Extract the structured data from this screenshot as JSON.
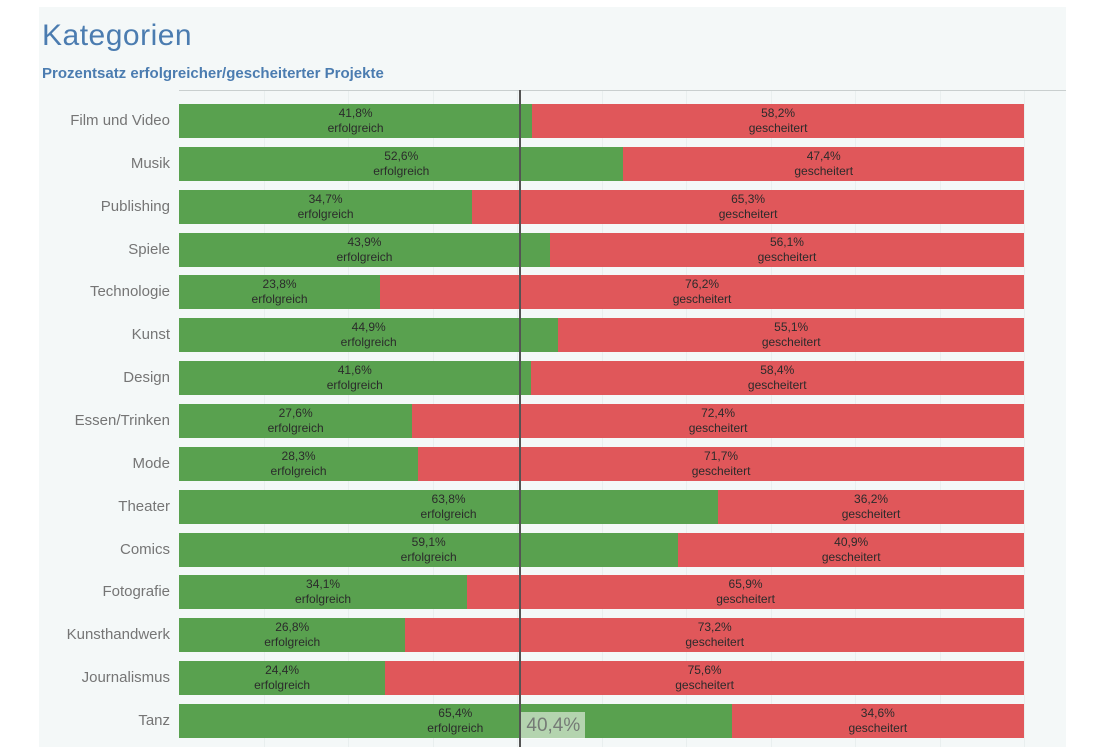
{
  "header": {
    "title": "Kategorien",
    "subtitle": "Prozentsatz erfolgreicher/gescheiterter Projekte"
  },
  "colors": {
    "success_green": "#59a14f",
    "failure_red": "#e0575a",
    "title_blue": "#4b7cb0",
    "canvas_background": "#f4f8f8",
    "category_label_grey": "#757575",
    "bar_label_dark": "#2b2b2b",
    "reference_line_grey": "#545454",
    "gridline_grey": "#e9efef"
  },
  "reference_line": {
    "value": 40.4,
    "label": "40,4%"
  },
  "chart_data": {
    "type": "bar",
    "orientation": "horizontal-stacked",
    "title": "Kategorien",
    "subtitle": "Prozentsatz erfolgreicher/gescheiterter Projekte",
    "xlim": [
      0,
      100
    ],
    "unit": "%",
    "decimal_separator": ",",
    "grid": "faint vertical lines every 10%",
    "legend_position": "none (labels inside bars)",
    "categories": [
      "Film und Video",
      "Musik",
      "Publishing",
      "Spiele",
      "Technologie",
      "Kunst",
      "Design",
      "Essen/Trinken",
      "Mode",
      "Theater",
      "Comics",
      "Fotografie",
      "Kunsthandwerk",
      "Journalismus",
      "Tanz"
    ],
    "series": [
      {
        "name": "erfolgreich",
        "color": "#59a14f",
        "values": [
          41.8,
          52.6,
          34.7,
          43.9,
          23.8,
          44.9,
          41.6,
          27.6,
          28.3,
          63.8,
          59.1,
          34.1,
          26.8,
          24.4,
          65.4
        ]
      },
      {
        "name": "gescheitert",
        "color": "#e0575a",
        "values": [
          58.2,
          47.4,
          65.3,
          56.1,
          76.2,
          55.1,
          58.4,
          72.4,
          71.7,
          36.2,
          40.9,
          65.9,
          73.2,
          75.6,
          34.6
        ]
      }
    ],
    "reference_line": {
      "value": 40.4,
      "label": "40,4%"
    }
  }
}
